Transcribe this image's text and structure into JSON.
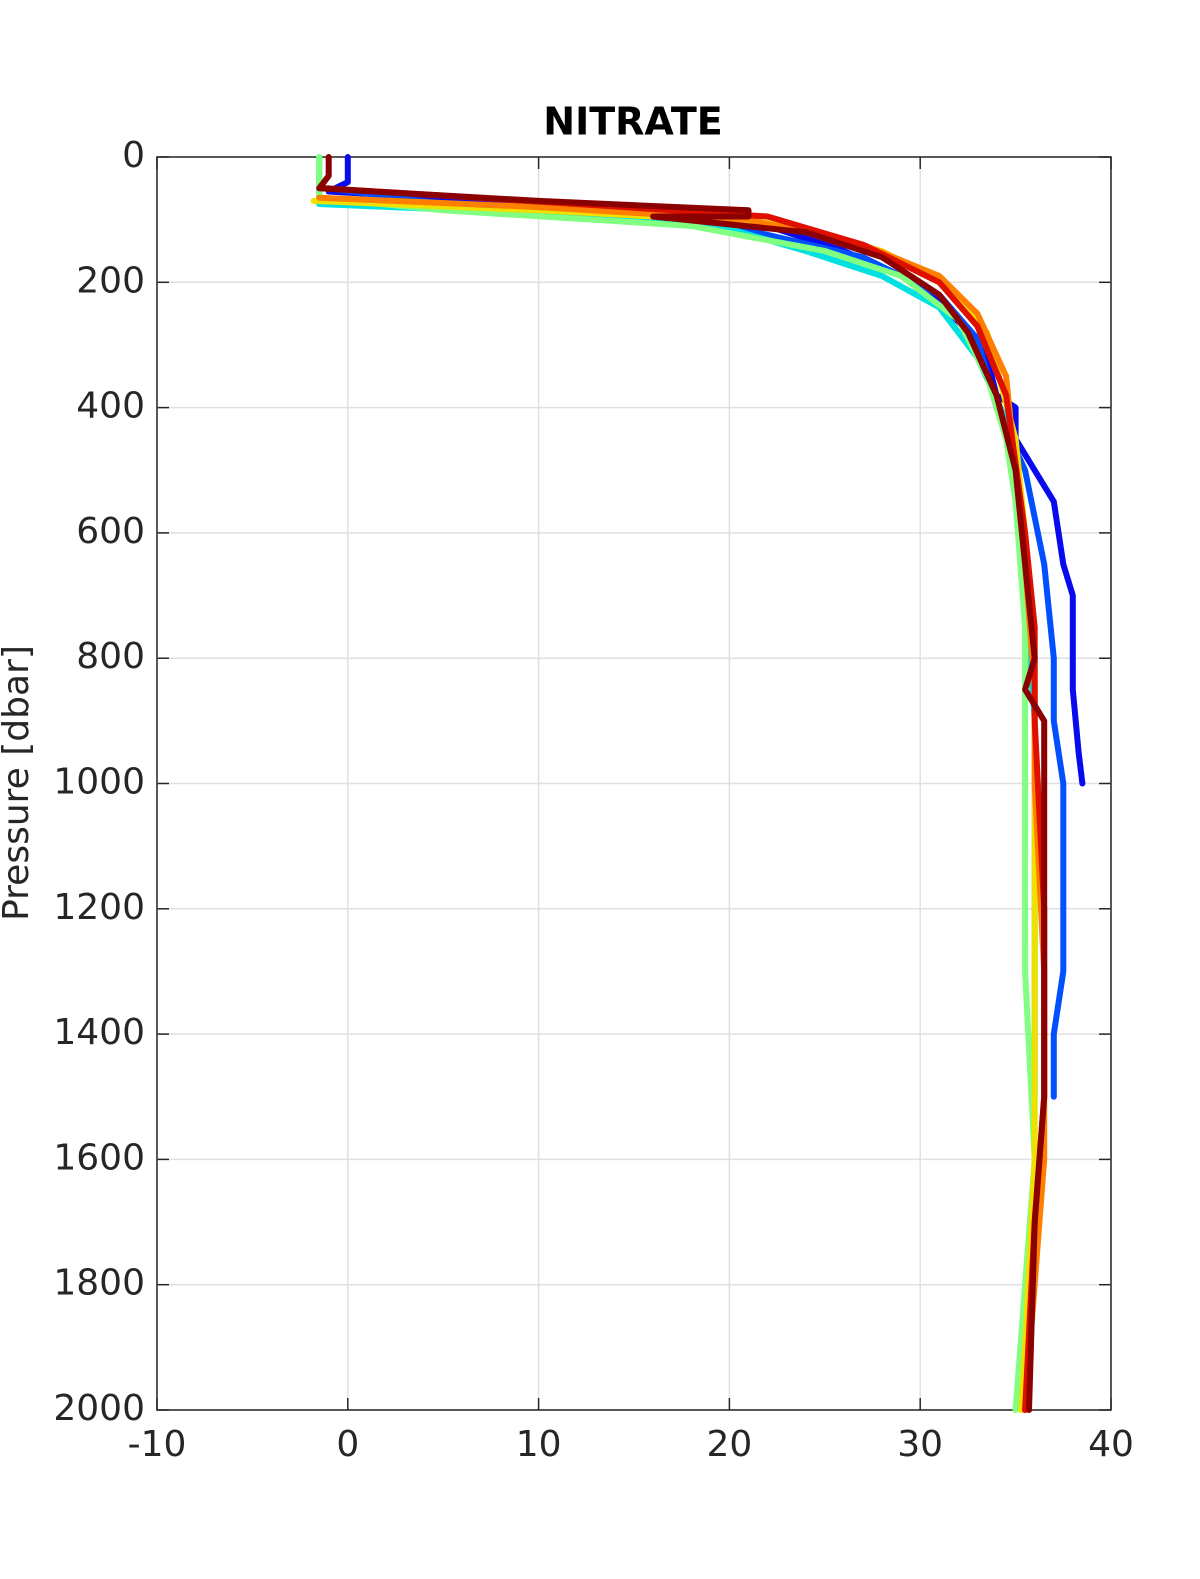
{
  "chart_data": {
    "type": "profile",
    "title": "NITRATE",
    "y_label": "Pressure [dbar]",
    "xlim": [
      -10,
      40
    ],
    "xticks": [
      -10,
      0,
      10,
      20,
      30,
      40
    ],
    "ylim": [
      0,
      2000
    ],
    "yticks": [
      0,
      200,
      400,
      600,
      800,
      1000,
      1200,
      1400,
      1600,
      1800,
      2000
    ],
    "y_reversed": true,
    "grid": true,
    "series": [
      {
        "color": "#0a0aee",
        "x": [
          0,
          0,
          0,
          -1,
          10,
          22,
          26,
          29,
          31,
          32.5,
          33.5,
          34,
          35,
          35,
          36,
          37,
          37.5,
          38,
          38,
          38,
          38.3,
          38.5
        ],
        "y": [
          0,
          20,
          40,
          55,
          75,
          110,
          150,
          190,
          230,
          280,
          320,
          380,
          400,
          450,
          500,
          550,
          650,
          700,
          800,
          850,
          950,
          1000
        ]
      },
      {
        "color": "#0050ff",
        "x": [
          -1,
          5,
          20,
          27,
          31,
          33,
          34,
          35.5,
          36.5,
          37,
          37,
          37.5,
          37.5,
          37,
          37
        ],
        "y": [
          50,
          75,
          110,
          160,
          220,
          290,
          400,
          500,
          650,
          800,
          900,
          1000,
          1300,
          1400,
          1500
        ]
      },
      {
        "color": "#00e0e0",
        "x": [
          -1.5,
          -1.5,
          -1.5,
          10,
          20,
          24,
          28,
          31,
          33,
          34.5,
          35,
          35.5,
          36,
          36,
          36
        ],
        "y": [
          0,
          50,
          75,
          90,
          115,
          150,
          190,
          240,
          320,
          420,
          550,
          700,
          900,
          1200,
          1500
        ]
      },
      {
        "color": "#80ff80",
        "x": [
          -1.5,
          -1.5,
          5,
          18,
          25,
          29,
          32,
          33.5,
          34.5,
          35,
          35.5,
          35.5,
          35.5,
          36,
          35.5,
          35
        ],
        "y": [
          0,
          65,
          85,
          110,
          150,
          190,
          260,
          350,
          450,
          550,
          750,
          1000,
          1300,
          1600,
          1800,
          2000
        ]
      },
      {
        "color": "#f0e000",
        "x": [
          -1.8,
          10,
          22,
          28,
          31,
          33.5,
          35,
          35.5,
          36,
          36,
          36,
          36,
          35.5,
          35.3
        ],
        "y": [
          70,
          85,
          105,
          150,
          200,
          280,
          450,
          600,
          800,
          1000,
          1300,
          1600,
          1900,
          2000
        ]
      },
      {
        "color": "#ff8000",
        "x": [
          -1.5,
          10,
          21,
          27,
          31,
          33,
          34.5,
          35,
          35.5,
          36,
          36,
          36.5,
          36.5,
          35.5
        ],
        "y": [
          65,
          80,
          100,
          140,
          190,
          250,
          350,
          500,
          650,
          850,
          1000,
          1300,
          1600,
          2000
        ]
      },
      {
        "color": "#e01000",
        "x": [
          -1.2,
          12,
          22,
          27,
          31,
          33,
          34.5,
          35.5,
          36,
          36,
          36.5,
          36.5,
          36,
          35.5
        ],
        "y": [
          50,
          75,
          95,
          140,
          200,
          270,
          380,
          600,
          750,
          900,
          1200,
          1500,
          1700,
          2000
        ]
      },
      {
        "color": "#8b0000",
        "x": [
          -1,
          -1,
          -1.5,
          10,
          21,
          21,
          16,
          24,
          28,
          31,
          32.5,
          34,
          35,
          35.5,
          36,
          35.5,
          36.5,
          36.5,
          36.5,
          36,
          35.7
        ],
        "y": [
          0,
          30,
          50,
          70,
          85,
          95,
          95,
          120,
          160,
          220,
          280,
          380,
          500,
          650,
          800,
          850,
          900,
          1200,
          1500,
          1700,
          2000
        ]
      }
    ]
  }
}
